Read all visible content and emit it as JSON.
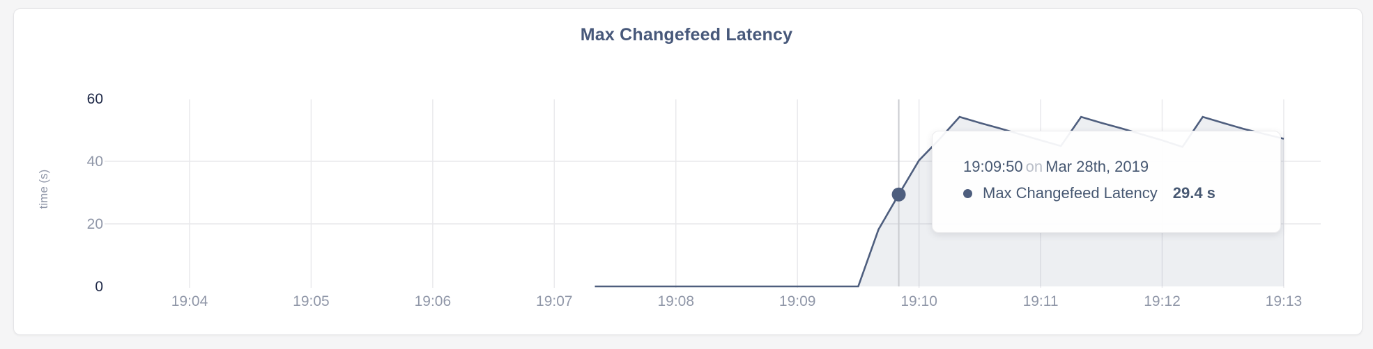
{
  "card": {
    "title": "Max Changefeed Latency"
  },
  "tooltip": {
    "time": "19:09:50",
    "conjunction": "on",
    "date": "Mar 28th, 2019",
    "series_label": "Max Changefeed Latency",
    "value": "29.4 s"
  },
  "colors": {
    "accent_line": "#4e5e7e",
    "area_fill": "rgba(78,94,126,0.10)",
    "gridline": "#e9e9ec",
    "tick_dark": "#1e2847",
    "tick_light": "#9097a8",
    "crosshair": "#c9cbd0",
    "title_text": "#47587a",
    "tooltip_muted": "#b9bec8",
    "card_bg": "#ffffff",
    "page_bg": "#f5f5f6"
  },
  "chart_data": {
    "type": "area",
    "title": "Max Changefeed Latency",
    "xlabel": "",
    "ylabel": "time (s)",
    "ylim": [
      0,
      60
    ],
    "yticks": [
      0,
      20,
      40,
      60
    ],
    "ytick_dark": [
      0,
      60
    ],
    "ygrid_values": [
      20,
      40
    ],
    "xticks": [
      "19:04",
      "19:05",
      "19:06",
      "19:07",
      "19:08",
      "19:09",
      "19:10",
      "19:11",
      "19:12",
      "19:13"
    ],
    "grid": "horizontal at 20 and 40, vertical at each minute",
    "legend_position": "none (tooltip only)",
    "series": [
      {
        "name": "Max Changefeed Latency",
        "unit": "s",
        "points": [
          {
            "t": "19:07:20",
            "v": 0
          },
          {
            "t": "19:07:30",
            "v": 0
          },
          {
            "t": "19:07:40",
            "v": 0
          },
          {
            "t": "19:07:50",
            "v": 0
          },
          {
            "t": "19:08:00",
            "v": 0
          },
          {
            "t": "19:08:10",
            "v": 0
          },
          {
            "t": "19:08:20",
            "v": 0
          },
          {
            "t": "19:08:30",
            "v": 0
          },
          {
            "t": "19:08:40",
            "v": 0
          },
          {
            "t": "19:08:50",
            "v": 0
          },
          {
            "t": "19:09:00",
            "v": 0
          },
          {
            "t": "19:09:10",
            "v": 0
          },
          {
            "t": "19:09:20",
            "v": 0
          },
          {
            "t": "19:09:30",
            "v": 0
          },
          {
            "t": "19:09:40",
            "v": 18.2
          },
          {
            "t": "19:09:50",
            "v": 29.4
          },
          {
            "t": "19:10:00",
            "v": 40.3
          },
          {
            "t": "19:10:10",
            "v": 47.0
          },
          {
            "t": "19:10:20",
            "v": 54.2
          },
          {
            "t": "19:10:30",
            "v": 52.3
          },
          {
            "t": "19:10:40",
            "v": 50.5
          },
          {
            "t": "19:10:50",
            "v": 48.6
          },
          {
            "t": "19:11:00",
            "v": 46.7
          },
          {
            "t": "19:11:10",
            "v": 44.9
          },
          {
            "t": "19:11:20",
            "v": 54.2
          },
          {
            "t": "19:11:30",
            "v": 52.3
          },
          {
            "t": "19:11:40",
            "v": 50.5
          },
          {
            "t": "19:11:50",
            "v": 48.6
          },
          {
            "t": "19:12:00",
            "v": 46.7
          },
          {
            "t": "19:12:10",
            "v": 44.6
          },
          {
            "t": "19:12:20",
            "v": 54.2
          },
          {
            "t": "19:12:30",
            "v": 52.3
          },
          {
            "t": "19:12:40",
            "v": 50.4
          },
          {
            "t": "19:12:50",
            "v": 48.8
          },
          {
            "t": "19:13:00",
            "v": 47.2
          }
        ]
      }
    ],
    "hover": {
      "t": "19:09:50",
      "v": 29.4
    }
  }
}
